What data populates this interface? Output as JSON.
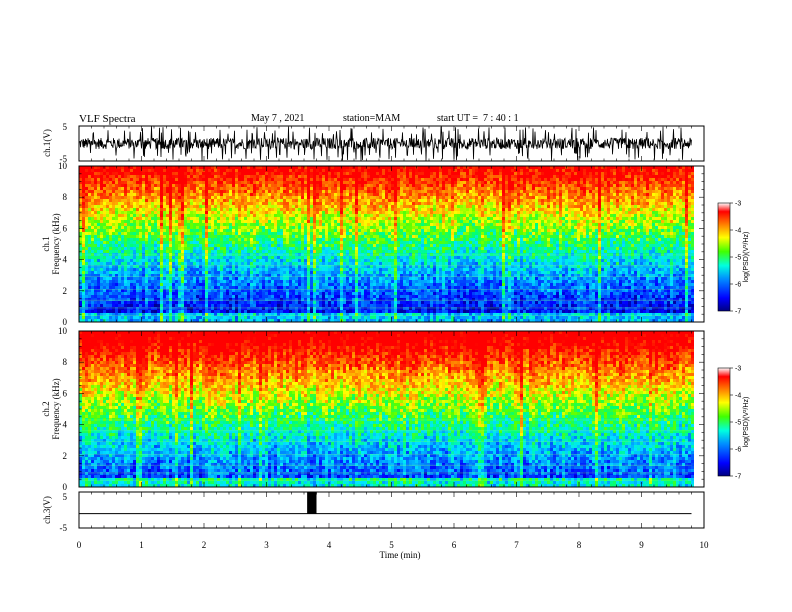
{
  "header": {
    "title": "VLF Spectra",
    "date": "May 7 , 2021",
    "station": "station=MAM",
    "start": "start UT =  7 : 40 : 1"
  },
  "chart_data": [
    {
      "type": "line",
      "panel": "ch1-waveform",
      "ylabel": "ch.1(V)",
      "yticks": [
        "5",
        "-5"
      ],
      "ylim": [
        -5,
        5
      ],
      "xlim": [
        0,
        10
      ]
    },
    {
      "type": "heatmap",
      "panel": "ch1-spectrogram",
      "ylabel_line1": "ch.1",
      "ylabel_line2": "Frequency (kHz)",
      "yticks": [
        "0",
        "2",
        "4",
        "6",
        "8",
        "10"
      ],
      "ylim": [
        0,
        10
      ],
      "xlim": [
        0,
        9.8
      ],
      "colorbar": {
        "ticks": [
          "-3",
          "-4",
          "-5",
          "-6",
          "-7"
        ],
        "range": [
          -7,
          -3
        ],
        "label": "log(PSD)(V²/Hz)"
      }
    },
    {
      "type": "heatmap",
      "panel": "ch2-spectrogram",
      "ylabel_line1": "ch.2",
      "ylabel_line2": "Frequency (kHz)",
      "yticks": [
        "0",
        "2",
        "4",
        "6",
        "8",
        "10"
      ],
      "ylim": [
        0,
        10
      ],
      "xlim": [
        0,
        9.8
      ],
      "colorbar": {
        "ticks": [
          "-3",
          "-4",
          "-5",
          "-6",
          "-7"
        ],
        "range": [
          -7,
          -3
        ],
        "label": "log(PSD)(V²/Hz)"
      }
    },
    {
      "type": "line",
      "panel": "ch3-waveform",
      "ylabel": "ch.3(V)",
      "yticks": [
        "5",
        "-5"
      ],
      "ylim": [
        -5,
        5
      ],
      "baseline": -1,
      "pulse": {
        "x_start": 3.65,
        "x_end": 3.8,
        "y_top": 5,
        "y_bottom": -1
      }
    }
  ],
  "xaxis": {
    "label": "Time (min)",
    "ticks": [
      "0",
      "1",
      "2",
      "3",
      "4",
      "5",
      "6",
      "7",
      "8",
      "9",
      "10"
    ],
    "xlim": [
      0,
      10
    ]
  },
  "colors": {
    "waveform": "#000000",
    "colormap": [
      "#0000a0",
      "#0000ff",
      "#0080ff",
      "#00e0ff",
      "#00ff80",
      "#40ff00",
      "#ffff00",
      "#ff9000",
      "#ff0000"
    ]
  }
}
